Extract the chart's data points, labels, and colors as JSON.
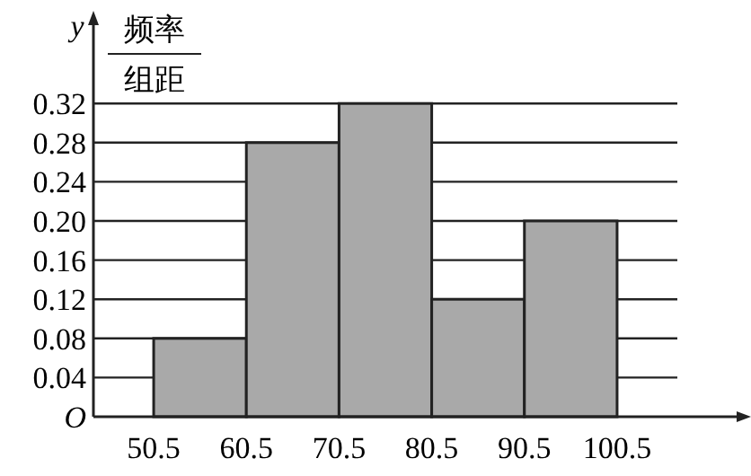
{
  "chart_data": {
    "type": "histogram",
    "ylabel": "y",
    "annotations": [
      "频率",
      "组距"
    ],
    "bins": [
      50.5,
      60.5,
      70.5,
      80.5,
      90.5,
      100.5
    ],
    "values": [
      0.08,
      0.28,
      0.32,
      0.12,
      0.2
    ],
    "color": "#a9a9a9",
    "xlim": [
      44,
      107
    ],
    "ylim": [
      0,
      0.4
    ],
    "xticks": [
      50.5,
      60.5,
      70.5,
      80.5,
      90.5,
      100.5
    ],
    "yticks": [
      {
        "value": 0,
        "label": "O"
      },
      0.04,
      0.08,
      0.12,
      0.16,
      {
        "value": 0.2,
        "label": "0.20"
      },
      0.24,
      0.28,
      0.32
    ],
    "grid": "y"
  }
}
